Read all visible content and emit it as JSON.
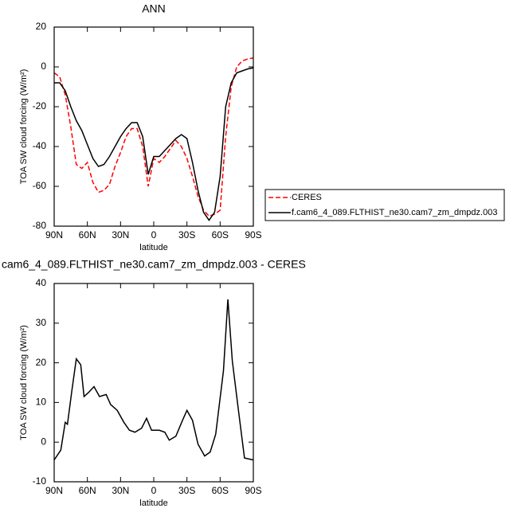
{
  "chart_data": [
    {
      "type": "line",
      "title": "ANN",
      "x_label": "latitude",
      "y_label": "TOA SW cloud forcing (W/m²)",
      "x": [
        90,
        85,
        80,
        75,
        70,
        65,
        60,
        55,
        50,
        45,
        40,
        35,
        30,
        25,
        20,
        15,
        10,
        5,
        0,
        -5,
        -10,
        -15,
        -20,
        -25,
        -30,
        -35,
        -40,
        -45,
        -50,
        -55,
        -60,
        -65,
        -70,
        -75,
        -80,
        -85,
        -90
      ],
      "series": [
        {
          "name": "CERES",
          "color": "#ff0000",
          "dashed": true,
          "values": [
            -3,
            -5,
            -14,
            -30,
            -49,
            -51,
            -48,
            -58,
            -63,
            -62,
            -59,
            -50,
            -43,
            -35,
            -31,
            -31,
            -40,
            -60,
            -46,
            -48,
            -45,
            -41,
            -37,
            -40,
            -46,
            -55,
            -65,
            -72,
            -75,
            -74,
            -72,
            -35,
            -10,
            0,
            3,
            4,
            4.5
          ]
        },
        {
          "name": "f.cam6_4_089.FLTHIST_ne30.cam7_zm_dmpdz.003",
          "color": "#000000",
          "dashed": false,
          "values": [
            -8,
            -8,
            -12,
            -20,
            -27,
            -32,
            -39,
            -46,
            -50,
            -49,
            -45,
            -40,
            -35,
            -31,
            -28,
            -28,
            -35,
            -54,
            -45,
            -45,
            -42,
            -39,
            -36,
            -34,
            -36,
            -48,
            -62,
            -73,
            -77,
            -73,
            -55,
            -20,
            -8,
            -3,
            -2,
            -1,
            -0.5
          ]
        }
      ],
      "xlim": [
        90,
        -90
      ],
      "xticks": [
        {
          "value": 90,
          "label": "90N"
        },
        {
          "value": 60,
          "label": "60N"
        },
        {
          "value": 30,
          "label": "30N"
        },
        0,
        {
          "value": -30,
          "label": "30S"
        },
        {
          "value": -60,
          "label": "60S"
        },
        {
          "value": -90,
          "label": "90S"
        }
      ],
      "ylim": [
        -80,
        20
      ],
      "yticks": [
        -80,
        -60,
        -40,
        -20,
        0,
        20
      ],
      "legend": "right"
    },
    {
      "type": "line",
      "title": "cam6_4_089.FLTHIST_ne30.cam7_zm_dmpdz.003 - CERES",
      "x_label": "latitude",
      "y_label": "TOA SW cloud forcing (W/m²)",
      "x": [
        90,
        84,
        80,
        78,
        74,
        70,
        66,
        63,
        59,
        54,
        49,
        43,
        39,
        33,
        27,
        22,
        17,
        11,
        6.5,
        2,
        -5,
        -10,
        -14,
        -20,
        -26,
        -30,
        -35,
        -40,
        -46,
        -51,
        -56,
        -63,
        -67,
        -71,
        -77,
        -82,
        -90
      ],
      "series": [
        {
          "name": null,
          "color": "#000000",
          "dashed": false,
          "values": [
            -4.5,
            -2,
            5,
            4.5,
            13,
            21,
            19.5,
            11.5,
            12.5,
            14,
            11.5,
            12,
            9.5,
            8,
            5,
            3,
            2.5,
            3.5,
            6,
            3,
            3,
            2.5,
            0.5,
            1.5,
            5.5,
            8,
            5.5,
            -0.5,
            -3.5,
            -2.5,
            2,
            18,
            36,
            20.5,
            7,
            -4,
            -4.5
          ]
        }
      ],
      "xlim": [
        90,
        -90
      ],
      "xticks": [
        {
          "value": 90,
          "label": "90N"
        },
        {
          "value": 60,
          "label": "60N"
        },
        {
          "value": 30,
          "label": "30N"
        },
        0,
        {
          "value": -30,
          "label": "30S"
        },
        {
          "value": -60,
          "label": "60S"
        },
        {
          "value": -90,
          "label": "90S"
        }
      ],
      "ylim": [
        -10,
        40
      ],
      "yticks": [
        -10,
        0,
        10,
        20,
        30,
        40
      ],
      "legend": "none"
    }
  ]
}
